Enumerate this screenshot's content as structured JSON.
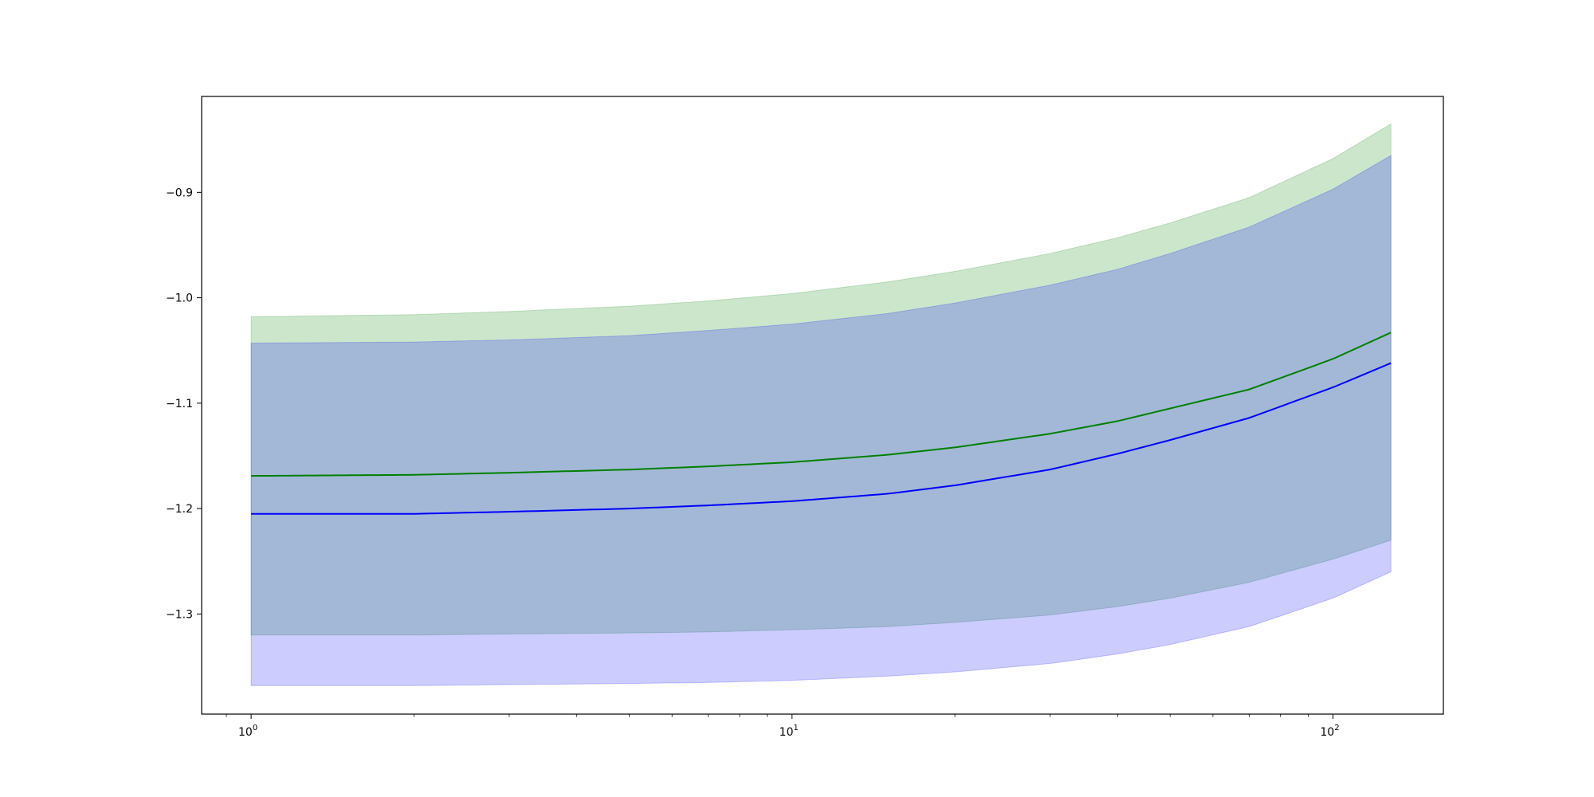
{
  "chart_data": {
    "type": "area",
    "title": "",
    "xlabel": "",
    "ylabel": "",
    "xscale": "log",
    "xlim": [
      0.81,
      160
    ],
    "ylim": [
      -1.395,
      -0.809
    ],
    "grid": false,
    "legend": "none",
    "x_ticks": [
      {
        "value": 1,
        "base": "10",
        "exp": "0"
      },
      {
        "value": 10,
        "base": "10",
        "exp": "1"
      },
      {
        "value": 100,
        "base": "10",
        "exp": "2"
      }
    ],
    "y_ticks": [
      {
        "value": -0.9,
        "label": "−0.9"
      },
      {
        "value": -1.0,
        "label": "−1.0"
      },
      {
        "value": -1.1,
        "label": "−1.1"
      },
      {
        "value": -1.2,
        "label": "−1.2"
      },
      {
        "value": -1.3,
        "label": "−1.3"
      }
    ],
    "x": [
      1,
      2,
      3,
      5,
      7,
      10,
      15,
      20,
      30,
      40,
      50,
      70,
      100,
      128
    ],
    "bands": [
      {
        "color": "#008000",
        "alpha": 0.2,
        "lower": [
          -1.32,
          -1.32,
          -1.319,
          -1.318,
          -1.317,
          -1.315,
          -1.312,
          -1.308,
          -1.301,
          -1.293,
          -1.285,
          -1.27,
          -1.248,
          -1.23
        ],
        "upper": [
          -1.018,
          -1.016,
          -1.013,
          -1.008,
          -1.003,
          -0.996,
          -0.985,
          -0.975,
          -0.958,
          -0.943,
          -0.929,
          -0.905,
          -0.868,
          -0.835
        ]
      },
      {
        "color": "#0000ff",
        "alpha": 0.2,
        "lower": [
          -1.368,
          -1.368,
          -1.367,
          -1.366,
          -1.365,
          -1.363,
          -1.359,
          -1.355,
          -1.347,
          -1.338,
          -1.329,
          -1.312,
          -1.285,
          -1.26
        ],
        "upper": [
          -1.043,
          -1.042,
          -1.04,
          -1.036,
          -1.031,
          -1.025,
          -1.015,
          -1.005,
          -0.988,
          -0.973,
          -0.958,
          -0.933,
          -0.897,
          -0.865
        ]
      }
    ],
    "series": [
      {
        "color": "#008000",
        "values": [
          -1.169,
          -1.168,
          -1.166,
          -1.163,
          -1.16,
          -1.156,
          -1.149,
          -1.142,
          -1.129,
          -1.117,
          -1.105,
          -1.087,
          -1.058,
          -1.033
        ]
      },
      {
        "color": "#0000ff",
        "values": [
          -1.205,
          -1.205,
          -1.203,
          -1.2,
          -1.197,
          -1.193,
          -1.186,
          -1.178,
          -1.163,
          -1.148,
          -1.135,
          -1.114,
          -1.085,
          -1.062
        ]
      }
    ]
  }
}
